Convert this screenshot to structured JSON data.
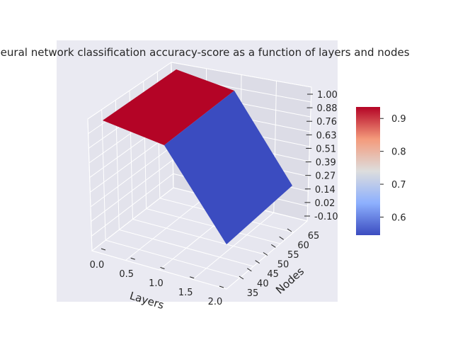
{
  "chart_data": {
    "type": "surface3d",
    "title": "Neural network classification accuracy-score as a function of layers and nodes",
    "xlabel": "Layers",
    "ylabel": "Nodes",
    "zlabel": "",
    "x": [
      0,
      2
    ],
    "y": [
      33,
      67
    ],
    "z": [
      [
        0.93,
        0.93
      ],
      [
        0.55,
        0.55
      ]
    ],
    "xticks": [
      "0.0",
      "0.5",
      "1.0",
      "1.5",
      "2.0"
    ],
    "yticks": [
      "35",
      "40",
      "45",
      "50",
      "55",
      "60",
      "65"
    ],
    "zticks": [
      "-0.10",
      "0.02",
      "0.14",
      "0.27",
      "0.39",
      "0.51",
      "0.63",
      "0.76",
      "0.88",
      "1.00"
    ],
    "zlim": [
      -0.1,
      1.0
    ],
    "colormap": "coolwarm",
    "colors": {
      "high": "#b40426",
      "low": "#3b4cc0",
      "pane": "#eaeaf2",
      "grid": "#ffffff"
    },
    "colorbar": {
      "range": [
        0.545,
        0.935
      ],
      "ticks": [
        "0.6",
        "0.7",
        "0.8",
        "0.9"
      ]
    }
  }
}
